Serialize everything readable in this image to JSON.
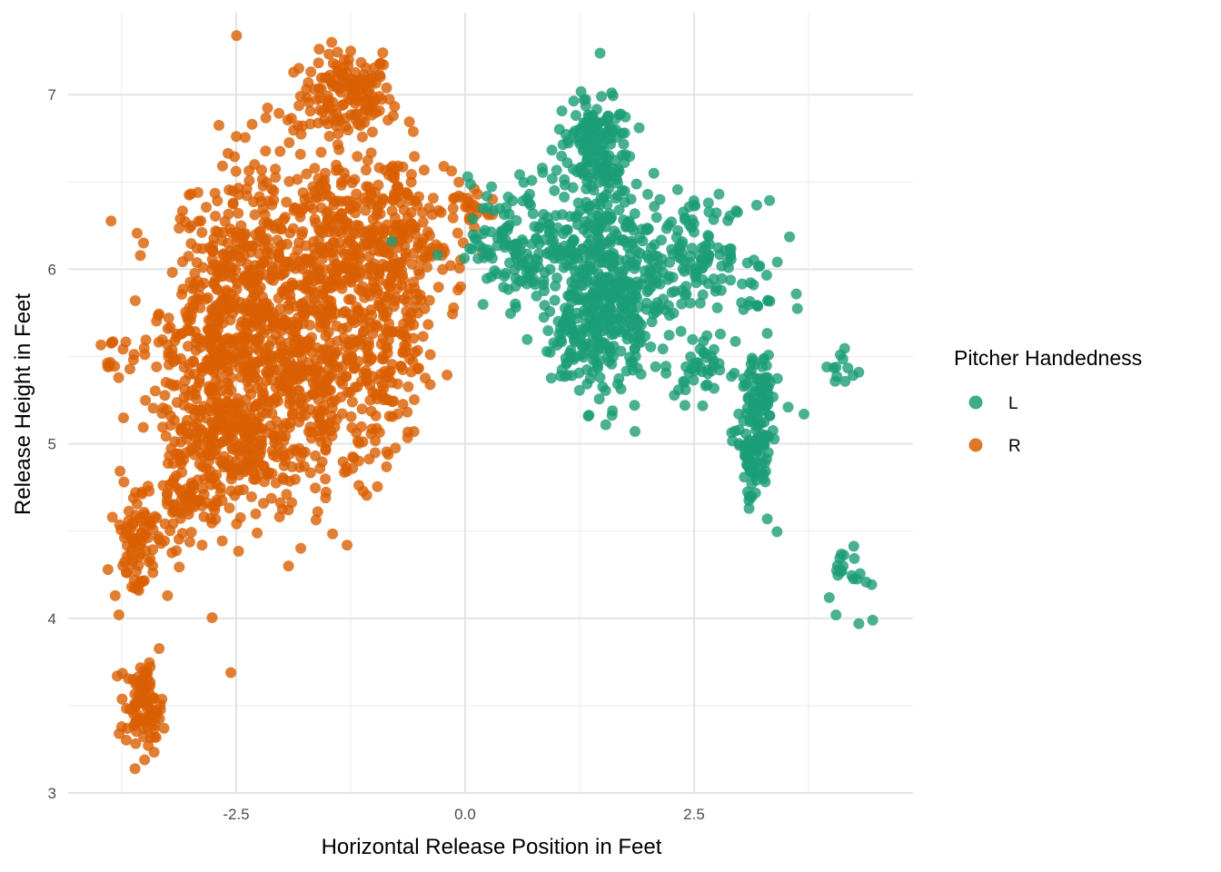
{
  "chart_data": {
    "type": "scatter",
    "title": "",
    "xlabel": "Horizontal Release Position in Feet",
    "ylabel": "Release Height in Feet",
    "xlim": [
      -4.35,
      4.9
    ],
    "ylim": [
      3.0,
      7.4
    ],
    "x_ticks": [
      -2.5,
      0.0,
      2.5
    ],
    "x_tick_labels": [
      "-2.5",
      "0.0",
      "2.5"
    ],
    "y_ticks": [
      3,
      4,
      5,
      6,
      7
    ],
    "y_tick_labels": [
      "3",
      "4",
      "5",
      "6",
      "7"
    ],
    "grid": true,
    "legend": {
      "title": "Pitcher Handedness",
      "placement": "right",
      "entries": [
        {
          "label": "L",
          "color": "#1b9e77"
        },
        {
          "label": "R",
          "color": "#d95f02"
        }
      ]
    },
    "series": [
      {
        "name": "L",
        "color": "#1b9e77",
        "clusters": [
          {
            "cx": 1.4,
            "cy": 6.7,
            "sx": 0.2,
            "sy": 0.15,
            "n": 140
          },
          {
            "cx": 0.65,
            "cy": 6.15,
            "sx": 0.3,
            "sy": 0.18,
            "n": 160
          },
          {
            "cx": 1.45,
            "cy": 6.1,
            "sx": 0.25,
            "sy": 0.3,
            "n": 200
          },
          {
            "cx": 1.75,
            "cy": 5.75,
            "sx": 0.3,
            "sy": 0.25,
            "n": 180
          },
          {
            "cx": 1.3,
            "cy": 5.6,
            "sx": 0.25,
            "sy": 0.15,
            "n": 100
          },
          {
            "cx": 2.5,
            "cy": 6.1,
            "sx": 0.35,
            "sy": 0.14,
            "n": 130
          },
          {
            "cx": 2.6,
            "cy": 5.45,
            "sx": 0.15,
            "sy": 0.1,
            "n": 40
          },
          {
            "cx": 3.2,
            "cy": 5.3,
            "sx": 0.12,
            "sy": 0.12,
            "n": 60
          },
          {
            "cx": 3.15,
            "cy": 4.95,
            "sx": 0.1,
            "sy": 0.15,
            "n": 90
          },
          {
            "cx": 3.2,
            "cy": 5.82,
            "sx": 0.1,
            "sy": 0.05,
            "n": 12
          },
          {
            "cx": 4.15,
            "cy": 5.45,
            "sx": 0.12,
            "sy": 0.08,
            "n": 12
          },
          {
            "cx": 4.2,
            "cy": 4.28,
            "sx": 0.1,
            "sy": 0.06,
            "n": 18
          }
        ],
        "points": [
          [
            4.45,
            3.99
          ],
          [
            4.3,
            3.97
          ],
          [
            4.05,
            4.02
          ],
          [
            3.3,
            4.57
          ],
          [
            3.1,
            4.63
          ],
          [
            2.4,
            5.22
          ],
          [
            1.85,
            5.22
          ],
          [
            -0.8,
            6.16
          ],
          [
            -0.3,
            6.08
          ],
          [
            3.7,
            5.17
          ],
          [
            1.3,
            6.97
          ],
          [
            1.6,
            7.01
          ]
        ]
      },
      {
        "name": "R",
        "color": "#d95f02",
        "clusters": [
          {
            "cx": -1.3,
            "cy": 7.0,
            "sx": 0.25,
            "sy": 0.12,
            "n": 140
          },
          {
            "cx": -2.3,
            "cy": 5.7,
            "sx": 0.45,
            "sy": 0.5,
            "n": 500
          },
          {
            "cx": -1.7,
            "cy": 5.4,
            "sx": 0.5,
            "sy": 0.35,
            "n": 380
          },
          {
            "cx": -1.3,
            "cy": 6.1,
            "sx": 0.45,
            "sy": 0.3,
            "n": 300
          },
          {
            "cx": -0.7,
            "cy": 6.2,
            "sx": 0.3,
            "sy": 0.25,
            "n": 160
          },
          {
            "cx": -2.9,
            "cy": 5.6,
            "sx": 0.25,
            "sy": 0.3,
            "n": 160
          },
          {
            "cx": -2.6,
            "cy": 5.0,
            "sx": 0.35,
            "sy": 0.18,
            "n": 180
          },
          {
            "cx": -3.0,
            "cy": 4.7,
            "sx": 0.2,
            "sy": 0.15,
            "n": 70
          },
          {
            "cx": -3.6,
            "cy": 4.45,
            "sx": 0.12,
            "sy": 0.18,
            "n": 80
          },
          {
            "cx": -3.5,
            "cy": 3.5,
            "sx": 0.1,
            "sy": 0.12,
            "n": 90
          },
          {
            "cx": 0.05,
            "cy": 6.35,
            "sx": 0.1,
            "sy": 0.06,
            "n": 18
          },
          {
            "cx": -3.8,
            "cy": 5.5,
            "sx": 0.1,
            "sy": 0.05,
            "n": 14
          },
          {
            "cx": -0.9,
            "cy": 5.5,
            "sx": 0.25,
            "sy": 0.25,
            "n": 90
          }
        ],
        "points": [
          [
            -3.25,
            4.13
          ],
          [
            -3.8,
            3.67
          ],
          [
            -3.75,
            3.38
          ],
          [
            -3.5,
            3.19
          ],
          [
            -1.95,
            4.71
          ],
          [
            -0.05,
            5.9
          ],
          [
            0.3,
            6.4
          ],
          [
            0.1,
            6.46
          ],
          [
            -3.9,
            4.28
          ],
          [
            -1.25,
            7.25
          ],
          [
            -0.9,
            7.24
          ],
          [
            -2.3,
            6.6
          ]
        ]
      }
    ]
  }
}
